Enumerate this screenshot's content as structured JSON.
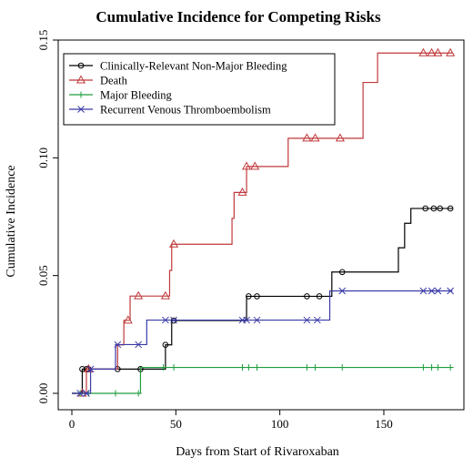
{
  "chart_data": {
    "type": "line",
    "subtype": "step",
    "title": "Cumulative Incidence for Competing Risks",
    "xlabel": "Days from Start of Rivaroxaban",
    "ylabel": "Cumulative Incidence",
    "xlim": [
      0,
      185
    ],
    "ylim": [
      0,
      0.15
    ],
    "x_ticks": [
      0,
      50,
      100,
      150
    ],
    "y_ticks": [
      0.0,
      0.05,
      0.1,
      0.15
    ],
    "y_tick_labels": [
      "0.00",
      "0.05",
      "0.10",
      "0.15"
    ],
    "legend_position": "top-left",
    "grid": false,
    "series": [
      {
        "name": "Clinically-Relevant Non-Major Bleeding",
        "color": "#000000",
        "marker": "circle",
        "steps": [
          [
            0,
            0
          ],
          [
            5,
            0.0103
          ],
          [
            21,
            0.0103
          ],
          [
            45,
            0.0206
          ],
          [
            48,
            0.0309
          ],
          [
            84,
            0.0412
          ],
          [
            125,
            0.0515
          ],
          [
            157,
            0.0618
          ],
          [
            160,
            0.0722
          ],
          [
            163,
            0.0785
          ],
          [
            183,
            0.0785
          ]
        ],
        "censor": [
          5,
          7,
          8,
          22,
          33,
          45,
          49,
          85,
          89,
          113,
          119,
          130,
          170,
          174,
          177,
          182
        ]
      },
      {
        "name": "Death",
        "color": "#c0393b",
        "marker": "triangle",
        "steps": [
          [
            0,
            0
          ],
          [
            7,
            0.0103
          ],
          [
            22,
            0.0206
          ],
          [
            25,
            0.031
          ],
          [
            28,
            0.0413
          ],
          [
            47,
            0.0522
          ],
          [
            48,
            0.0633
          ],
          [
            77,
            0.0743
          ],
          [
            78,
            0.0853
          ],
          [
            84,
            0.0963
          ],
          [
            104,
            0.1083
          ],
          [
            140,
            0.132
          ],
          [
            147,
            0.1445
          ],
          [
            183,
            0.1445
          ]
        ],
        "censor": [
          5,
          8,
          27,
          32,
          45,
          49,
          82,
          84,
          88,
          113,
          117,
          129,
          169,
          173,
          176,
          182
        ]
      },
      {
        "name": "Major Bleeding",
        "color": "#1e9e3c",
        "marker": "plus",
        "steps": [
          [
            0,
            0
          ],
          [
            33,
            0.011
          ],
          [
            183,
            0.011
          ]
        ],
        "censor": [
          4,
          8,
          21,
          32,
          44,
          49,
          82,
          85,
          89,
          113,
          117,
          130,
          169,
          173,
          176,
          182
        ]
      },
      {
        "name": "Recurrent Venous Thromboembolism",
        "color": "#3a3aa8",
        "marker": "x",
        "steps": [
          [
            0,
            0
          ],
          [
            9,
            0.0103
          ],
          [
            21,
            0.0207
          ],
          [
            36,
            0.0311
          ],
          [
            124,
            0.0435
          ],
          [
            183,
            0.0435
          ]
        ],
        "censor": [
          4,
          7,
          9,
          22,
          32,
          45,
          49,
          82,
          84,
          89,
          113,
          118,
          130,
          169,
          173,
          176,
          182
        ]
      }
    ]
  }
}
